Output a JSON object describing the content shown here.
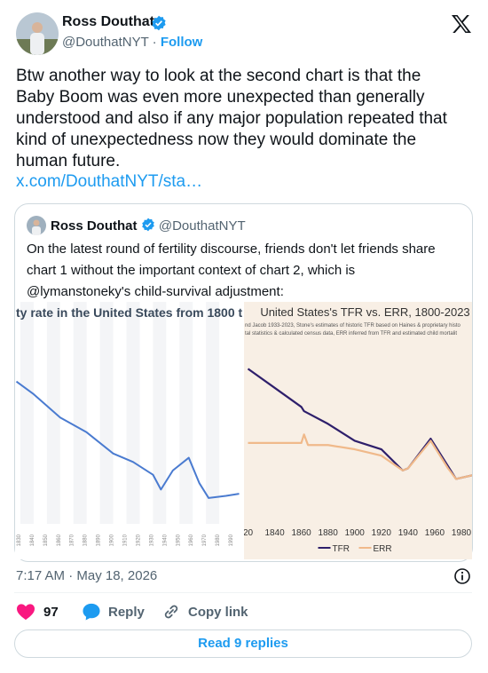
{
  "author": {
    "name": "Ross Douthat",
    "handle": "@DouthatNYT",
    "separator": "·",
    "follow": "Follow"
  },
  "tweet": {
    "lines": [
      "Btw another way to look at the second chart is that the",
      "Baby Boom was even more unexpected than generally",
      "understood and also if any major population repeated that",
      "kind of unexpectedness now they would dominate the",
      "human future."
    ],
    "link": "x.com/DouthatNYT/sta…"
  },
  "quote": {
    "author": {
      "name": "Ross Douthat",
      "handle": "@DouthatNYT"
    },
    "lines": [
      "On the latest round of fertility discourse, friends don't let friends share",
      "chart 1 without the important context of chart 2, which is",
      "@lymanstoneky's child-survival adjustment:"
    ],
    "charts": [
      {
        "chart_data": {
          "type": "line",
          "title": "ty rate in the United States from 1800 t",
          "x": [
            1827,
            1840,
            1860,
            1880,
            1900,
            1915,
            1930,
            1936,
            1945,
            1957,
            1965,
            1972,
            1985,
            1995
          ],
          "series": [
            {
              "color": "#4a7bd0",
              "values": [
                6.4,
                5.8,
                4.7,
                4.0,
                3.0,
                2.6,
                2.0,
                1.3,
                2.2,
                2.8,
                1.6,
                0.9,
                1.0,
                1.1
              ]
            }
          ],
          "xlim": [
            1826,
            1998
          ],
          "ylim": [
            0.1,
            8.9
          ],
          "xticks": [
            1830,
            1840,
            1850,
            1860,
            1870,
            1880,
            1890,
            1900,
            1910,
            1920,
            1930,
            1940,
            1950,
            1960,
            1970,
            1980,
            1990
          ]
        }
      },
      {
        "chart_data": {
          "type": "line",
          "title": "United States's TFR vs. ERR, 1800-2023",
          "subtitle": [
            "nd Jacob 1933-2023, Stone's estimates of historic TFR based on Haines & proprietary histo",
            "tal statistics & calculated census data, ERR inferred from TFR and estimated child mortalit"
          ],
          "x": [
            1820,
            1840,
            1860,
            1862,
            1865,
            1880,
            1900,
            1920,
            1936,
            1940,
            1957,
            1970,
            1976,
            1990
          ],
          "series": [
            {
              "name": "TFR",
              "color": "#2e1f6b",
              "values": [
                7.0,
                6.1,
                5.2,
                5.0,
                4.9,
                4.4,
                3.6,
                3.2,
                2.2,
                2.3,
                3.7,
                2.4,
                1.8,
                2.0
              ]
            },
            {
              "name": "ERR",
              "color": "#f0b98a",
              "values": [
                3.5,
                3.5,
                3.5,
                3.9,
                3.4,
                3.4,
                3.2,
                2.9,
                2.2,
                2.3,
                3.6,
                2.3,
                1.8,
                2.0
              ]
            }
          ],
          "xlim": [
            1817,
            1988
          ],
          "ylim": [
            0.1,
            8.9
          ],
          "xticks": [
            {
              "value": 1820,
              "label": "20"
            },
            1840,
            1860,
            1880,
            1900,
            1920,
            1940,
            1960,
            1980
          ]
        }
      }
    ]
  },
  "timestamp": "7:17 AM · May 18, 2026",
  "actions": {
    "likes": 97,
    "reply": "Reply",
    "copy": "Copy link"
  },
  "read_replies": "Read 9 replies"
}
